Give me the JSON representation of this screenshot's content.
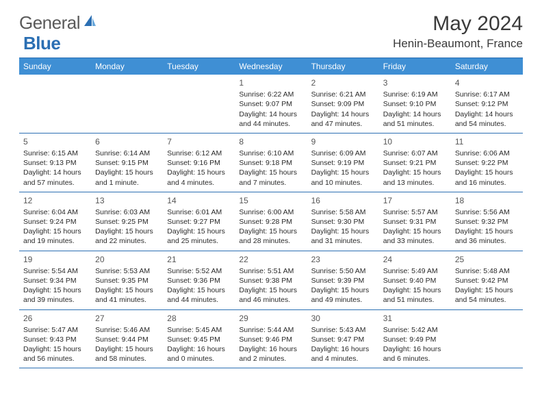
{
  "logo": {
    "general": "General",
    "blue": "Blue"
  },
  "title": "May 2024",
  "location": "Henin-Beaumont, France",
  "colors": {
    "header_bg": "#3f8fd4",
    "border": "#2b6fb3",
    "logo_blue": "#2b6fb3",
    "logo_gray": "#5a5a5a",
    "text": "#2a2a2a"
  },
  "day_headers": [
    "Sunday",
    "Monday",
    "Tuesday",
    "Wednesday",
    "Thursday",
    "Friday",
    "Saturday"
  ],
  "weeks": [
    [
      {
        "num": "",
        "sunrise": "",
        "sunset": "",
        "daylight": ""
      },
      {
        "num": "",
        "sunrise": "",
        "sunset": "",
        "daylight": ""
      },
      {
        "num": "",
        "sunrise": "",
        "sunset": "",
        "daylight": ""
      },
      {
        "num": "1",
        "sunrise": "Sunrise: 6:22 AM",
        "sunset": "Sunset: 9:07 PM",
        "daylight": "Daylight: 14 hours and 44 minutes."
      },
      {
        "num": "2",
        "sunrise": "Sunrise: 6:21 AM",
        "sunset": "Sunset: 9:09 PM",
        "daylight": "Daylight: 14 hours and 47 minutes."
      },
      {
        "num": "3",
        "sunrise": "Sunrise: 6:19 AM",
        "sunset": "Sunset: 9:10 PM",
        "daylight": "Daylight: 14 hours and 51 minutes."
      },
      {
        "num": "4",
        "sunrise": "Sunrise: 6:17 AM",
        "sunset": "Sunset: 9:12 PM",
        "daylight": "Daylight: 14 hours and 54 minutes."
      }
    ],
    [
      {
        "num": "5",
        "sunrise": "Sunrise: 6:15 AM",
        "sunset": "Sunset: 9:13 PM",
        "daylight": "Daylight: 14 hours and 57 minutes."
      },
      {
        "num": "6",
        "sunrise": "Sunrise: 6:14 AM",
        "sunset": "Sunset: 9:15 PM",
        "daylight": "Daylight: 15 hours and 1 minute."
      },
      {
        "num": "7",
        "sunrise": "Sunrise: 6:12 AM",
        "sunset": "Sunset: 9:16 PM",
        "daylight": "Daylight: 15 hours and 4 minutes."
      },
      {
        "num": "8",
        "sunrise": "Sunrise: 6:10 AM",
        "sunset": "Sunset: 9:18 PM",
        "daylight": "Daylight: 15 hours and 7 minutes."
      },
      {
        "num": "9",
        "sunrise": "Sunrise: 6:09 AM",
        "sunset": "Sunset: 9:19 PM",
        "daylight": "Daylight: 15 hours and 10 minutes."
      },
      {
        "num": "10",
        "sunrise": "Sunrise: 6:07 AM",
        "sunset": "Sunset: 9:21 PM",
        "daylight": "Daylight: 15 hours and 13 minutes."
      },
      {
        "num": "11",
        "sunrise": "Sunrise: 6:06 AM",
        "sunset": "Sunset: 9:22 PM",
        "daylight": "Daylight: 15 hours and 16 minutes."
      }
    ],
    [
      {
        "num": "12",
        "sunrise": "Sunrise: 6:04 AM",
        "sunset": "Sunset: 9:24 PM",
        "daylight": "Daylight: 15 hours and 19 minutes."
      },
      {
        "num": "13",
        "sunrise": "Sunrise: 6:03 AM",
        "sunset": "Sunset: 9:25 PM",
        "daylight": "Daylight: 15 hours and 22 minutes."
      },
      {
        "num": "14",
        "sunrise": "Sunrise: 6:01 AM",
        "sunset": "Sunset: 9:27 PM",
        "daylight": "Daylight: 15 hours and 25 minutes."
      },
      {
        "num": "15",
        "sunrise": "Sunrise: 6:00 AM",
        "sunset": "Sunset: 9:28 PM",
        "daylight": "Daylight: 15 hours and 28 minutes."
      },
      {
        "num": "16",
        "sunrise": "Sunrise: 5:58 AM",
        "sunset": "Sunset: 9:30 PM",
        "daylight": "Daylight: 15 hours and 31 minutes."
      },
      {
        "num": "17",
        "sunrise": "Sunrise: 5:57 AM",
        "sunset": "Sunset: 9:31 PM",
        "daylight": "Daylight: 15 hours and 33 minutes."
      },
      {
        "num": "18",
        "sunrise": "Sunrise: 5:56 AM",
        "sunset": "Sunset: 9:32 PM",
        "daylight": "Daylight: 15 hours and 36 minutes."
      }
    ],
    [
      {
        "num": "19",
        "sunrise": "Sunrise: 5:54 AM",
        "sunset": "Sunset: 9:34 PM",
        "daylight": "Daylight: 15 hours and 39 minutes."
      },
      {
        "num": "20",
        "sunrise": "Sunrise: 5:53 AM",
        "sunset": "Sunset: 9:35 PM",
        "daylight": "Daylight: 15 hours and 41 minutes."
      },
      {
        "num": "21",
        "sunrise": "Sunrise: 5:52 AM",
        "sunset": "Sunset: 9:36 PM",
        "daylight": "Daylight: 15 hours and 44 minutes."
      },
      {
        "num": "22",
        "sunrise": "Sunrise: 5:51 AM",
        "sunset": "Sunset: 9:38 PM",
        "daylight": "Daylight: 15 hours and 46 minutes."
      },
      {
        "num": "23",
        "sunrise": "Sunrise: 5:50 AM",
        "sunset": "Sunset: 9:39 PM",
        "daylight": "Daylight: 15 hours and 49 minutes."
      },
      {
        "num": "24",
        "sunrise": "Sunrise: 5:49 AM",
        "sunset": "Sunset: 9:40 PM",
        "daylight": "Daylight: 15 hours and 51 minutes."
      },
      {
        "num": "25",
        "sunrise": "Sunrise: 5:48 AM",
        "sunset": "Sunset: 9:42 PM",
        "daylight": "Daylight: 15 hours and 54 minutes."
      }
    ],
    [
      {
        "num": "26",
        "sunrise": "Sunrise: 5:47 AM",
        "sunset": "Sunset: 9:43 PM",
        "daylight": "Daylight: 15 hours and 56 minutes."
      },
      {
        "num": "27",
        "sunrise": "Sunrise: 5:46 AM",
        "sunset": "Sunset: 9:44 PM",
        "daylight": "Daylight: 15 hours and 58 minutes."
      },
      {
        "num": "28",
        "sunrise": "Sunrise: 5:45 AM",
        "sunset": "Sunset: 9:45 PM",
        "daylight": "Daylight: 16 hours and 0 minutes."
      },
      {
        "num": "29",
        "sunrise": "Sunrise: 5:44 AM",
        "sunset": "Sunset: 9:46 PM",
        "daylight": "Daylight: 16 hours and 2 minutes."
      },
      {
        "num": "30",
        "sunrise": "Sunrise: 5:43 AM",
        "sunset": "Sunset: 9:47 PM",
        "daylight": "Daylight: 16 hours and 4 minutes."
      },
      {
        "num": "31",
        "sunrise": "Sunrise: 5:42 AM",
        "sunset": "Sunset: 9:49 PM",
        "daylight": "Daylight: 16 hours and 6 minutes."
      },
      {
        "num": "",
        "sunrise": "",
        "sunset": "",
        "daylight": ""
      }
    ]
  ]
}
